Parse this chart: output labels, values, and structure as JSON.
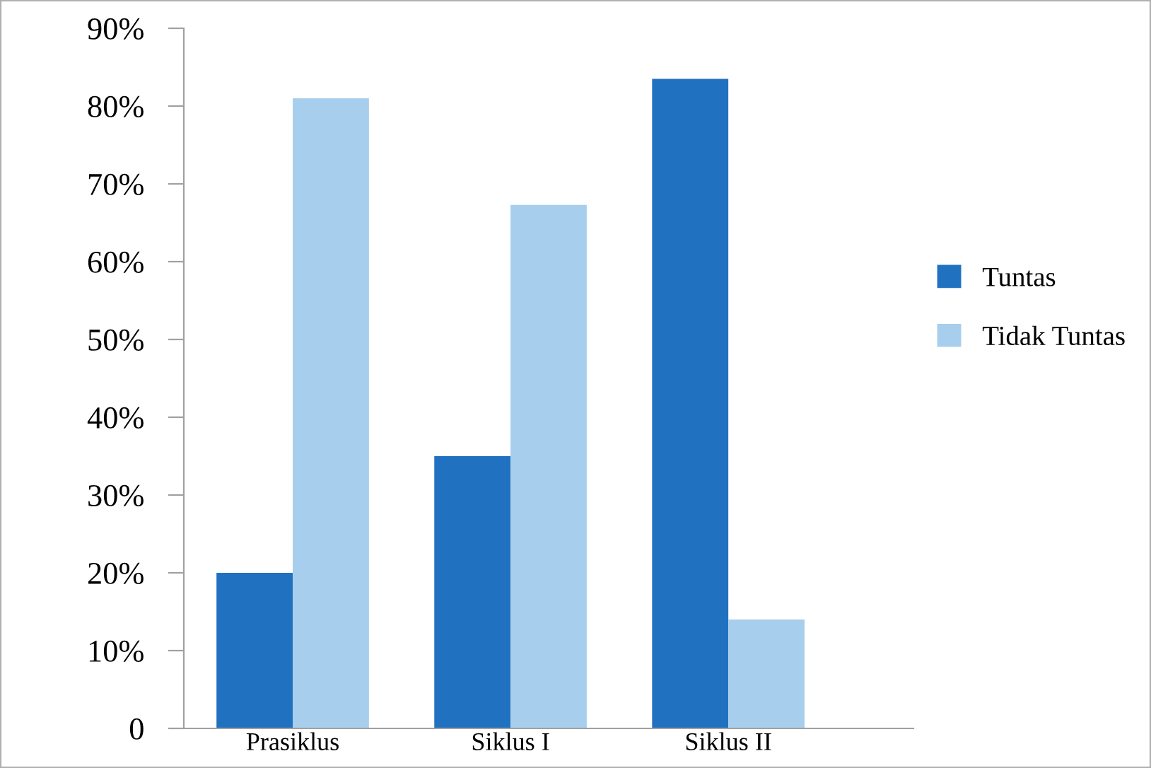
{
  "chart_data": {
    "type": "bar",
    "categories": [
      "Prasiklus",
      "Siklus I",
      "Siklus II"
    ],
    "series": [
      {
        "name": "Tuntas",
        "color": "#2171c1",
        "values": [
          20,
          35,
          83.5
        ]
      },
      {
        "name": "Tidak Tuntas",
        "color": "#a8ceed",
        "values": [
          81,
          67.3,
          14
        ]
      }
    ],
    "ylim": [
      0,
      90
    ],
    "yticks": [
      {
        "value": 0,
        "label": "0"
      },
      {
        "value": 10,
        "label": "10%"
      },
      {
        "value": 20,
        "label": "20%"
      },
      {
        "value": 30,
        "label": "30%"
      },
      {
        "value": 40,
        "label": "40%"
      },
      {
        "value": 50,
        "label": "50%"
      },
      {
        "value": 60,
        "label": "60%"
      },
      {
        "value": 70,
        "label": "70%"
      },
      {
        "value": 80,
        "label": "80%"
      },
      {
        "value": 90,
        "label": "90%"
      }
    ],
    "grid": false,
    "legend": "right"
  }
}
